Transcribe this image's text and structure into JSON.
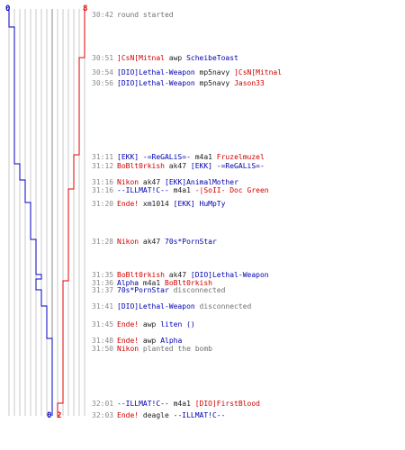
{
  "colors": {
    "team_blue": "#0000c0",
    "team_red": "#e00000",
    "grid": "#c8c8c8",
    "text": "#707070"
  },
  "scores": {
    "blue_start": "0",
    "red_start": "8",
    "blue_end": "0",
    "red_end": "2"
  },
  "events": [
    {
      "time": "30:42",
      "parts": [
        {
          "t": "round started",
          "c": "gray"
        }
      ]
    },
    {
      "time": "30:51",
      "parts": [
        {
          "t": "]CsN[Mitnal",
          "c": "red"
        },
        {
          "t": " awp ",
          "c": "dark"
        },
        {
          "t": "ScheibeToast",
          "c": "blue"
        }
      ]
    },
    {
      "time": "30:54",
      "parts": [
        {
          "t": "[DIO]Lethal-Weapon",
          "c": "blue"
        },
        {
          "t": " mp5navy ",
          "c": "dark"
        },
        {
          "t": "]CsN[Mitnal",
          "c": "red"
        }
      ]
    },
    {
      "time": "30:56",
      "parts": [
        {
          "t": "[DIO]Lethal-Weapon",
          "c": "blue"
        },
        {
          "t": " mp5navy ",
          "c": "dark"
        },
        {
          "t": "Jason33",
          "c": "red"
        }
      ]
    },
    {
      "time": "31:11",
      "parts": [
        {
          "t": "[EKK] -=ReGALiS=-",
          "c": "blue"
        },
        {
          "t": " m4a1 ",
          "c": "dark"
        },
        {
          "t": "Fruzelmuzel",
          "c": "red"
        }
      ]
    },
    {
      "time": "31:12",
      "parts": [
        {
          "t": "BoBlt0rkish",
          "c": "red"
        },
        {
          "t": " ak47 ",
          "c": "dark"
        },
        {
          "t": "[EKK] -=ReGALiS=-",
          "c": "blue"
        }
      ]
    },
    {
      "time": "31:16",
      "parts": [
        {
          "t": "Nikon",
          "c": "red"
        },
        {
          "t": " ak47 ",
          "c": "dark"
        },
        {
          "t": "[EKK]AnimalMother",
          "c": "blue"
        }
      ]
    },
    {
      "time": "31:16",
      "parts": [
        {
          "t": "--ILLMAT!C--",
          "c": "blue"
        },
        {
          "t": " m4a1 ",
          "c": "dark"
        },
        {
          "t": "-|SoII- Doc Green",
          "c": "red"
        }
      ]
    },
    {
      "time": "31:20",
      "parts": [
        {
          "t": "Ende!",
          "c": "red"
        },
        {
          "t": " xm1014 ",
          "c": "dark"
        },
        {
          "t": "[EKK] HuMpTy",
          "c": "blue"
        }
      ]
    },
    {
      "time": "31:28",
      "parts": [
        {
          "t": "Nikon",
          "c": "red"
        },
        {
          "t": " ak47 ",
          "c": "dark"
        },
        {
          "t": "70s*PornStar",
          "c": "blue"
        }
      ]
    },
    {
      "time": "31:35",
      "parts": [
        {
          "t": "BoBlt0rkish",
          "c": "red"
        },
        {
          "t": " ak47 ",
          "c": "dark"
        },
        {
          "t": "[DIO]Lethal-Weapon",
          "c": "blue"
        }
      ]
    },
    {
      "time": "31:36",
      "parts": [
        {
          "t": "Alpha",
          "c": "blue"
        },
        {
          "t": " m4a1 ",
          "c": "dark"
        },
        {
          "t": "BoBlt0rkish",
          "c": "red"
        }
      ]
    },
    {
      "time": "31:37",
      "parts": [
        {
          "t": "70s*PornStar",
          "c": "blue"
        },
        {
          "t": " disconnected",
          "c": "gray"
        }
      ]
    },
    {
      "time": "31:41",
      "parts": [
        {
          "t": "[DIO]Lethal-Weapon",
          "c": "blue"
        },
        {
          "t": " disconnected",
          "c": "gray"
        }
      ]
    },
    {
      "time": "31:45",
      "parts": [
        {
          "t": "Ende!",
          "c": "red"
        },
        {
          "t": " awp ",
          "c": "dark"
        },
        {
          "t": "liten ()",
          "c": "blue"
        }
      ]
    },
    {
      "time": "31:48",
      "parts": [
        {
          "t": "Ende!",
          "c": "red"
        },
        {
          "t": " awp ",
          "c": "dark"
        },
        {
          "t": "Alpha",
          "c": "blue"
        }
      ]
    },
    {
      "time": "31:50",
      "parts": [
        {
          "t": "Nikon",
          "c": "red"
        },
        {
          "t": " planted the bomb",
          "c": "gray"
        }
      ]
    },
    {
      "time": "32:01",
      "parts": [
        {
          "t": "--ILLMAT!C--",
          "c": "blue"
        },
        {
          "t": " m4a1 ",
          "c": "dark"
        },
        {
          "t": "[DIO]FirstBlood",
          "c": "red"
        }
      ]
    },
    {
      "time": "32:03",
      "parts": [
        {
          "t": "Ende!",
          "c": "red"
        },
        {
          "t": " deagle ",
          "c": "dark"
        },
        {
          "t": "--ILLMAT!C--",
          "c": "blue"
        }
      ]
    }
  ]
}
